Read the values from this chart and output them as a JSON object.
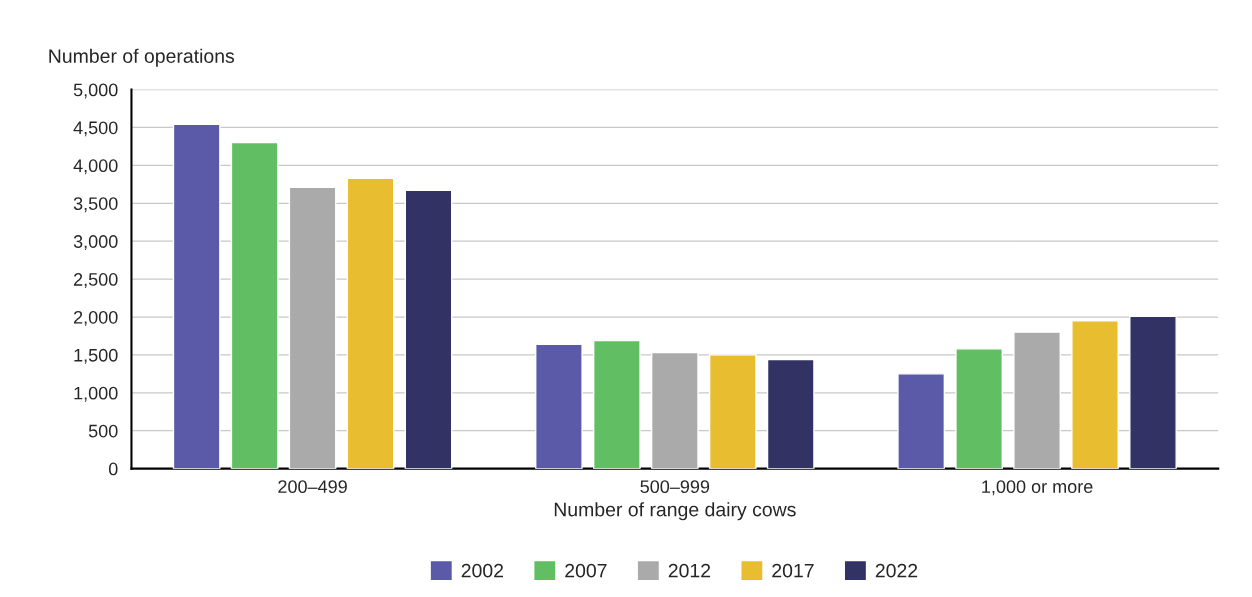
{
  "chart_data": {
    "type": "bar",
    "xlabel": "Number of range dairy cows",
    "ylabel": "Number of operations",
    "categories": [
      "200–499",
      "500–999",
      "1,000 or more"
    ],
    "series": [
      {
        "name": "2002",
        "color": "#5a5aa8",
        "values": [
          4540,
          1640,
          1250
        ]
      },
      {
        "name": "2007",
        "color": "#62be62",
        "values": [
          4300,
          1690,
          1580
        ]
      },
      {
        "name": "2012",
        "color": "#aaaaaa",
        "values": [
          3710,
          1530,
          1800
        ]
      },
      {
        "name": "2017",
        "color": "#e9bd30",
        "values": [
          3830,
          1500,
          1950
        ]
      },
      {
        "name": "2022",
        "color": "#323264",
        "values": [
          3670,
          1440,
          2010
        ]
      }
    ],
    "ylim": [
      0,
      5000
    ],
    "yticks": [
      0,
      500,
      {
        "value": 1000,
        "label": "1,000"
      },
      {
        "value": 1500,
        "label": "1,500"
      },
      {
        "value": 2000,
        "label": "2,000"
      },
      {
        "value": 2500,
        "label": "2,500"
      },
      {
        "value": 3000,
        "label": "3,000"
      },
      {
        "value": 3500,
        "label": "3,500"
      },
      {
        "value": 4000,
        "label": "4,000"
      },
      {
        "value": 4500,
        "label": "4,500"
      },
      {
        "value": 5000,
        "label": "5,000"
      }
    ],
    "grid": "y",
    "legend": "bottom"
  }
}
